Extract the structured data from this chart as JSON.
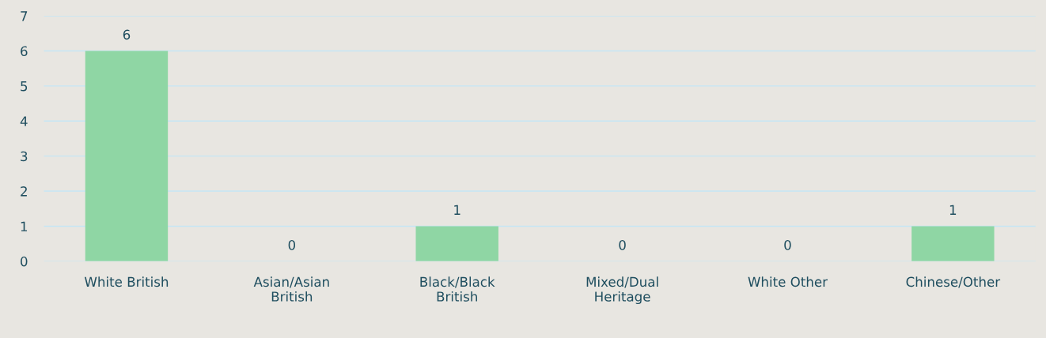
{
  "chart_data": {
    "type": "bar",
    "categories": [
      "White British",
      "Asian/Asian British",
      "Black/Black British",
      "Mixed/Dual Heritage",
      "White Other",
      "Chinese/Other"
    ],
    "values": [
      6,
      0,
      1,
      0,
      0,
      1
    ],
    "color": "#8fd6a4",
    "ylim": [
      0,
      7
    ],
    "yticks": [
      0,
      1,
      2,
      3,
      4,
      5,
      6,
      7
    ],
    "grid": "y",
    "data_labels": true
  }
}
